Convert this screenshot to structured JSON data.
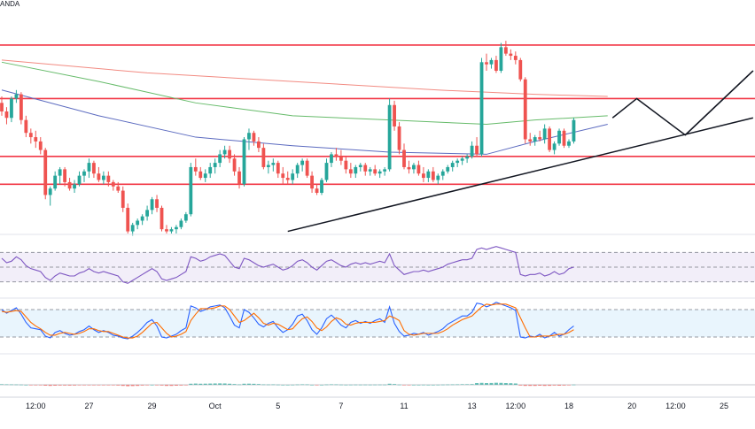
{
  "header": {
    "source_label": "ANDA"
  },
  "chart_data": {
    "type": "candlestick",
    "title": "",
    "colors": {
      "up": "#26a69a",
      "down": "#ef5350",
      "ma_red": "#f28b82",
      "ma_green": "#66bb6a",
      "ma_blue": "#5c6bc0",
      "level": "#f23645",
      "trendline": "#131722",
      "rsi": "#7e57c2",
      "rsi_band": "#ede7f6",
      "stoch_k": "#2962ff",
      "stoch_d": "#ff6d00",
      "stoch_band": "#e3f2fd"
    },
    "x_axis": {
      "tick_labels": [
        "12:00",
        "27",
        "29",
        "Oct",
        "5",
        "7",
        "11",
        "13",
        "12:00",
        "18",
        "20",
        "12:00",
        "25"
      ],
      "tick_index": [
        7,
        18,
        31,
        44,
        57,
        70,
        83,
        97,
        106,
        117,
        130,
        139,
        149
      ]
    },
    "price_range": [
      7,
      102
    ],
    "horizontal_levels": [
      95,
      70,
      43,
      30
    ],
    "candles": [
      {
        "o": 68,
        "h": 71,
        "l": 62,
        "c": 64
      },
      {
        "o": 64,
        "h": 66,
        "l": 58,
        "c": 61
      },
      {
        "o": 61,
        "h": 71,
        "l": 59,
        "c": 70
      },
      {
        "o": 70,
        "h": 74,
        "l": 68,
        "c": 72
      },
      {
        "o": 72,
        "h": 73,
        "l": 58,
        "c": 60
      },
      {
        "o": 60,
        "h": 62,
        "l": 52,
        "c": 54
      },
      {
        "o": 54,
        "h": 56,
        "l": 49,
        "c": 52
      },
      {
        "o": 52,
        "h": 55,
        "l": 47,
        "c": 50
      },
      {
        "o": 50,
        "h": 52,
        "l": 44,
        "c": 46
      },
      {
        "o": 46,
        "h": 47,
        "l": 23,
        "c": 25
      },
      {
        "o": 25,
        "h": 29,
        "l": 20,
        "c": 28
      },
      {
        "o": 28,
        "h": 36,
        "l": 27,
        "c": 34
      },
      {
        "o": 34,
        "h": 38,
        "l": 30,
        "c": 37
      },
      {
        "o": 37,
        "h": 38,
        "l": 29,
        "c": 31
      },
      {
        "o": 31,
        "h": 33,
        "l": 27,
        "c": 28
      },
      {
        "o": 28,
        "h": 32,
        "l": 26,
        "c": 30
      },
      {
        "o": 30,
        "h": 36,
        "l": 29,
        "c": 34
      },
      {
        "o": 34,
        "h": 37,
        "l": 31,
        "c": 36
      },
      {
        "o": 36,
        "h": 42,
        "l": 33,
        "c": 40
      },
      {
        "o": 40,
        "h": 41,
        "l": 33,
        "c": 35
      },
      {
        "o": 35,
        "h": 38,
        "l": 31,
        "c": 32
      },
      {
        "o": 32,
        "h": 36,
        "l": 30,
        "c": 34
      },
      {
        "o": 34,
        "h": 36,
        "l": 29,
        "c": 31
      },
      {
        "o": 31,
        "h": 32,
        "l": 27,
        "c": 29
      },
      {
        "o": 29,
        "h": 31,
        "l": 26,
        "c": 27
      },
      {
        "o": 27,
        "h": 29,
        "l": 17,
        "c": 19
      },
      {
        "o": 19,
        "h": 21,
        "l": 7,
        "c": 8
      },
      {
        "o": 8,
        "h": 12,
        "l": 6,
        "c": 11
      },
      {
        "o": 11,
        "h": 14,
        "l": 9,
        "c": 13
      },
      {
        "o": 13,
        "h": 16,
        "l": 11,
        "c": 15
      },
      {
        "o": 15,
        "h": 20,
        "l": 13,
        "c": 18
      },
      {
        "o": 18,
        "h": 24,
        "l": 16,
        "c": 23
      },
      {
        "o": 23,
        "h": 25,
        "l": 17,
        "c": 19
      },
      {
        "o": 19,
        "h": 20,
        "l": 8,
        "c": 9
      },
      {
        "o": 9,
        "h": 11,
        "l": 7,
        "c": 8
      },
      {
        "o": 8,
        "h": 10,
        "l": 7,
        "c": 9
      },
      {
        "o": 9,
        "h": 11,
        "l": 7,
        "c": 10
      },
      {
        "o": 10,
        "h": 14,
        "l": 9,
        "c": 13
      },
      {
        "o": 13,
        "h": 17,
        "l": 12,
        "c": 16
      },
      {
        "o": 16,
        "h": 40,
        "l": 15,
        "c": 38
      },
      {
        "o": 38,
        "h": 42,
        "l": 34,
        "c": 36
      },
      {
        "o": 36,
        "h": 38,
        "l": 32,
        "c": 33
      },
      {
        "o": 33,
        "h": 37,
        "l": 31,
        "c": 35
      },
      {
        "o": 35,
        "h": 40,
        "l": 33,
        "c": 38
      },
      {
        "o": 38,
        "h": 42,
        "l": 35,
        "c": 40
      },
      {
        "o": 40,
        "h": 46,
        "l": 38,
        "c": 44
      },
      {
        "o": 44,
        "h": 48,
        "l": 42,
        "c": 46
      },
      {
        "o": 46,
        "h": 48,
        "l": 40,
        "c": 42
      },
      {
        "o": 42,
        "h": 44,
        "l": 34,
        "c": 36
      },
      {
        "o": 36,
        "h": 38,
        "l": 28,
        "c": 30
      },
      {
        "o": 30,
        "h": 52,
        "l": 29,
        "c": 51
      },
      {
        "o": 51,
        "h": 56,
        "l": 46,
        "c": 54
      },
      {
        "o": 54,
        "h": 55,
        "l": 48,
        "c": 50
      },
      {
        "o": 50,
        "h": 52,
        "l": 45,
        "c": 47
      },
      {
        "o": 47,
        "h": 49,
        "l": 37,
        "c": 38
      },
      {
        "o": 38,
        "h": 41,
        "l": 35,
        "c": 39
      },
      {
        "o": 39,
        "h": 42,
        "l": 36,
        "c": 40
      },
      {
        "o": 40,
        "h": 41,
        "l": 33,
        "c": 35
      },
      {
        "o": 35,
        "h": 38,
        "l": 30,
        "c": 33
      },
      {
        "o": 33,
        "h": 36,
        "l": 30,
        "c": 32
      },
      {
        "o": 32,
        "h": 37,
        "l": 30,
        "c": 35
      },
      {
        "o": 35,
        "h": 40,
        "l": 33,
        "c": 39
      },
      {
        "o": 39,
        "h": 42,
        "l": 36,
        "c": 41
      },
      {
        "o": 41,
        "h": 42,
        "l": 33,
        "c": 34
      },
      {
        "o": 34,
        "h": 36,
        "l": 26,
        "c": 28
      },
      {
        "o": 28,
        "h": 30,
        "l": 25,
        "c": 26
      },
      {
        "o": 26,
        "h": 33,
        "l": 25,
        "c": 32
      },
      {
        "o": 32,
        "h": 42,
        "l": 31,
        "c": 40
      },
      {
        "o": 40,
        "h": 45,
        "l": 38,
        "c": 44
      },
      {
        "o": 44,
        "h": 47,
        "l": 41,
        "c": 43
      },
      {
        "o": 43,
        "h": 46,
        "l": 39,
        "c": 41
      },
      {
        "o": 41,
        "h": 43,
        "l": 35,
        "c": 37
      },
      {
        "o": 37,
        "h": 40,
        "l": 33,
        "c": 35
      },
      {
        "o": 35,
        "h": 39,
        "l": 33,
        "c": 38
      },
      {
        "o": 38,
        "h": 40,
        "l": 36,
        "c": 39
      },
      {
        "o": 39,
        "h": 40,
        "l": 34,
        "c": 36
      },
      {
        "o": 36,
        "h": 38,
        "l": 34,
        "c": 37
      },
      {
        "o": 37,
        "h": 39,
        "l": 34,
        "c": 35
      },
      {
        "o": 35,
        "h": 37,
        "l": 33,
        "c": 36
      },
      {
        "o": 36,
        "h": 38,
        "l": 34,
        "c": 37
      },
      {
        "o": 37,
        "h": 70,
        "l": 36,
        "c": 67
      },
      {
        "o": 67,
        "h": 69,
        "l": 55,
        "c": 57
      },
      {
        "o": 57,
        "h": 59,
        "l": 44,
        "c": 46
      },
      {
        "o": 46,
        "h": 49,
        "l": 37,
        "c": 38
      },
      {
        "o": 38,
        "h": 41,
        "l": 35,
        "c": 37
      },
      {
        "o": 37,
        "h": 40,
        "l": 35,
        "c": 39
      },
      {
        "o": 39,
        "h": 41,
        "l": 34,
        "c": 35
      },
      {
        "o": 35,
        "h": 38,
        "l": 31,
        "c": 33
      },
      {
        "o": 33,
        "h": 37,
        "l": 31,
        "c": 36
      },
      {
        "o": 36,
        "h": 38,
        "l": 31,
        "c": 32
      },
      {
        "o": 32,
        "h": 35,
        "l": 30,
        "c": 34
      },
      {
        "o": 34,
        "h": 37,
        "l": 32,
        "c": 36
      },
      {
        "o": 36,
        "h": 39,
        "l": 35,
        "c": 38
      },
      {
        "o": 38,
        "h": 41,
        "l": 36,
        "c": 40
      },
      {
        "o": 40,
        "h": 42,
        "l": 38,
        "c": 41
      },
      {
        "o": 41,
        "h": 43,
        "l": 39,
        "c": 42
      },
      {
        "o": 42,
        "h": 44,
        "l": 40,
        "c": 43
      },
      {
        "o": 43,
        "h": 50,
        "l": 42,
        "c": 48
      },
      {
        "o": 48,
        "h": 52,
        "l": 43,
        "c": 44
      },
      {
        "o": 44,
        "h": 89,
        "l": 43,
        "c": 87
      },
      {
        "o": 87,
        "h": 91,
        "l": 83,
        "c": 86
      },
      {
        "o": 86,
        "h": 89,
        "l": 84,
        "c": 88
      },
      {
        "o": 88,
        "h": 90,
        "l": 82,
        "c": 83
      },
      {
        "o": 83,
        "h": 96,
        "l": 82,
        "c": 94
      },
      {
        "o": 94,
        "h": 97,
        "l": 90,
        "c": 91
      },
      {
        "o": 91,
        "h": 93,
        "l": 88,
        "c": 90
      },
      {
        "o": 90,
        "h": 92,
        "l": 86,
        "c": 88
      },
      {
        "o": 88,
        "h": 89,
        "l": 78,
        "c": 79
      },
      {
        "o": 79,
        "h": 80,
        "l": 49,
        "c": 51
      },
      {
        "o": 51,
        "h": 54,
        "l": 48,
        "c": 50
      },
      {
        "o": 50,
        "h": 53,
        "l": 48,
        "c": 52
      },
      {
        "o": 52,
        "h": 55,
        "l": 50,
        "c": 51
      },
      {
        "o": 51,
        "h": 58,
        "l": 49,
        "c": 56
      },
      {
        "o": 56,
        "h": 57,
        "l": 45,
        "c": 46
      },
      {
        "o": 46,
        "h": 50,
        "l": 44,
        "c": 49
      },
      {
        "o": 49,
        "h": 56,
        "l": 48,
        "c": 55
      },
      {
        "o": 55,
        "h": 56,
        "l": 47,
        "c": 48
      },
      {
        "o": 48,
        "h": 51,
        "l": 47,
        "c": 50
      },
      {
        "o": 50,
        "h": 61,
        "l": 49,
        "c": 60
      }
    ],
    "moving_averages": [
      {
        "name": "",
        "color_key": "ma_red",
        "points": [
          [
            0,
            88
          ],
          [
            30,
            82
          ],
          [
            60,
            78
          ],
          [
            90,
            74
          ],
          [
            110,
            72
          ],
          [
            125,
            71
          ]
        ]
      },
      {
        "name": "",
        "color_key": "ma_green",
        "points": [
          [
            0,
            87
          ],
          [
            20,
            78
          ],
          [
            40,
            68
          ],
          [
            60,
            62
          ],
          [
            80,
            60
          ],
          [
            100,
            58
          ],
          [
            110,
            60
          ],
          [
            125,
            62
          ]
        ]
      },
      {
        "name": "",
        "color_key": "ma_blue",
        "points": [
          [
            0,
            74
          ],
          [
            20,
            62
          ],
          [
            40,
            52
          ],
          [
            60,
            48
          ],
          [
            80,
            45
          ],
          [
            100,
            44
          ],
          [
            110,
            50
          ],
          [
            125,
            58
          ]
        ]
      }
    ],
    "projection": [
      [
        126,
        61
      ],
      [
        131,
        70
      ],
      [
        141,
        53
      ],
      [
        155,
        83
      ]
    ],
    "trendlines": [
      {
        "from": [
          59,
          8
        ],
        "to": [
          155,
          61
        ]
      },
      {
        "from": [
          141,
          53
        ],
        "to": [
          155,
          83
        ]
      }
    ],
    "rsi": {
      "levels": [
        70,
        50,
        30
      ],
      "range": [
        20,
        80
      ],
      "values": [
        62,
        56,
        58,
        64,
        60,
        52,
        48,
        46,
        44,
        36,
        32,
        38,
        42,
        40,
        38,
        38,
        42,
        44,
        48,
        44,
        42,
        44,
        42,
        40,
        38,
        30,
        28,
        32,
        36,
        40,
        44,
        48,
        44,
        34,
        32,
        34,
        36,
        40,
        44,
        64,
        62,
        58,
        60,
        64,
        66,
        68,
        66,
        58,
        50,
        48,
        62,
        60,
        56,
        52,
        50,
        52,
        54,
        50,
        46,
        48,
        52,
        58,
        60,
        56,
        50,
        46,
        52,
        58,
        60,
        56,
        52,
        50,
        54,
        56,
        54,
        56,
        54,
        56,
        58,
        56,
        68,
        52,
        46,
        40,
        42,
        44,
        44,
        46,
        44,
        46,
        48,
        50,
        54,
        56,
        58,
        60,
        60,
        62,
        74,
        76,
        74,
        76,
        78,
        76,
        74,
        72,
        70,
        40,
        38,
        40,
        40,
        42,
        38,
        40,
        44,
        40,
        42,
        48,
        50
      ]
    },
    "stochastic": {
      "levels": [
        80,
        20
      ],
      "range": [
        0,
        100
      ],
      "k": [
        80,
        72,
        78,
        84,
        70,
        52,
        40,
        38,
        36,
        22,
        18,
        30,
        34,
        28,
        24,
        26,
        32,
        36,
        44,
        36,
        30,
        34,
        30,
        24,
        22,
        18,
        16,
        22,
        30,
        40,
        52,
        58,
        44,
        20,
        18,
        22,
        26,
        34,
        40,
        88,
        84,
        76,
        80,
        86,
        88,
        90,
        84,
        66,
        46,
        40,
        80,
        74,
        62,
        48,
        42,
        50,
        54,
        40,
        30,
        36,
        48,
        66,
        70,
        56,
        36,
        26,
        40,
        60,
        68,
        58,
        46,
        40,
        52,
        56,
        50,
        54,
        50,
        56,
        60,
        52,
        86,
        50,
        32,
        22,
        24,
        28,
        26,
        30,
        24,
        28,
        32,
        38,
        48,
        54,
        60,
        66,
        66,
        74,
        94,
        92,
        86,
        90,
        96,
        92,
        88,
        84,
        78,
        20,
        18,
        22,
        20,
        26,
        18,
        22,
        30,
        22,
        26,
        36,
        44
      ],
      "d": [
        76,
        74,
        76,
        78,
        76,
        64,
        52,
        44,
        38,
        30,
        24,
        24,
        28,
        30,
        28,
        26,
        28,
        32,
        38,
        38,
        34,
        32,
        32,
        28,
        24,
        20,
        18,
        18,
        22,
        30,
        40,
        50,
        52,
        40,
        28,
        20,
        22,
        26,
        32,
        56,
        70,
        82,
        82,
        82,
        84,
        88,
        88,
        80,
        66,
        52,
        56,
        64,
        72,
        62,
        50,
        46,
        50,
        48,
        42,
        36,
        38,
        50,
        60,
        64,
        54,
        40,
        34,
        42,
        54,
        62,
        58,
        48,
        46,
        50,
        52,
        52,
        52,
        52,
        54,
        56,
        66,
        62,
        56,
        34,
        26,
        24,
        26,
        28,
        28,
        28,
        28,
        32,
        38,
        46,
        52,
        58,
        62,
        66,
        76,
        86,
        92,
        90,
        92,
        92,
        92,
        88,
        84,
        62,
        40,
        20,
        20,
        22,
        22,
        22,
        24,
        26,
        26,
        30,
        36
      ]
    },
    "oscillator": {
      "range": [
        -1,
        1
      ],
      "values": [
        0.15,
        0.12,
        0.1,
        0.08,
        0.05,
        0,
        -0.05,
        -0.1,
        -0.15,
        -0.25,
        -0.3,
        -0.25,
        -0.2,
        -0.2,
        -0.22,
        -0.2,
        -0.15,
        -0.1,
        -0.05,
        -0.08,
        -0.1,
        -0.1,
        -0.12,
        -0.15,
        -0.2,
        -0.3,
        -0.4,
        -0.35,
        -0.3,
        -0.2,
        -0.1,
        0,
        -0.05,
        -0.2,
        -0.3,
        -0.3,
        -0.25,
        -0.2,
        -0.1,
        0.3,
        0.35,
        0.3,
        0.32,
        0.35,
        0.38,
        0.4,
        0.38,
        0.3,
        0.2,
        0.1,
        0.3,
        0.32,
        0.28,
        0.2,
        0.1,
        0.08,
        0.1,
        0.05,
        0,
        0,
        0.02,
        0.08,
        0.12,
        0.1,
        0,
        -0.05,
        0,
        0.08,
        0.12,
        0.1,
        0.05,
        0.02,
        0.03,
        0.05,
        0.04,
        0.05,
        0.04,
        0.05,
        0.06,
        0.05,
        0.3,
        0.2,
        0.05,
        -0.05,
        -0.05,
        0,
        0,
        0.02,
        0,
        0,
        0.02,
        0.05,
        0.08,
        0.1,
        0.12,
        0.15,
        0.15,
        0.18,
        0.5,
        0.55,
        0.5,
        0.52,
        0.58,
        0.55,
        0.5,
        0.45,
        0.38,
        -0.2,
        -0.3,
        -0.3,
        -0.3,
        -0.25,
        -0.3,
        -0.28,
        -0.2,
        -0.25,
        -0.2,
        -0.1,
        0.05
      ]
    }
  }
}
